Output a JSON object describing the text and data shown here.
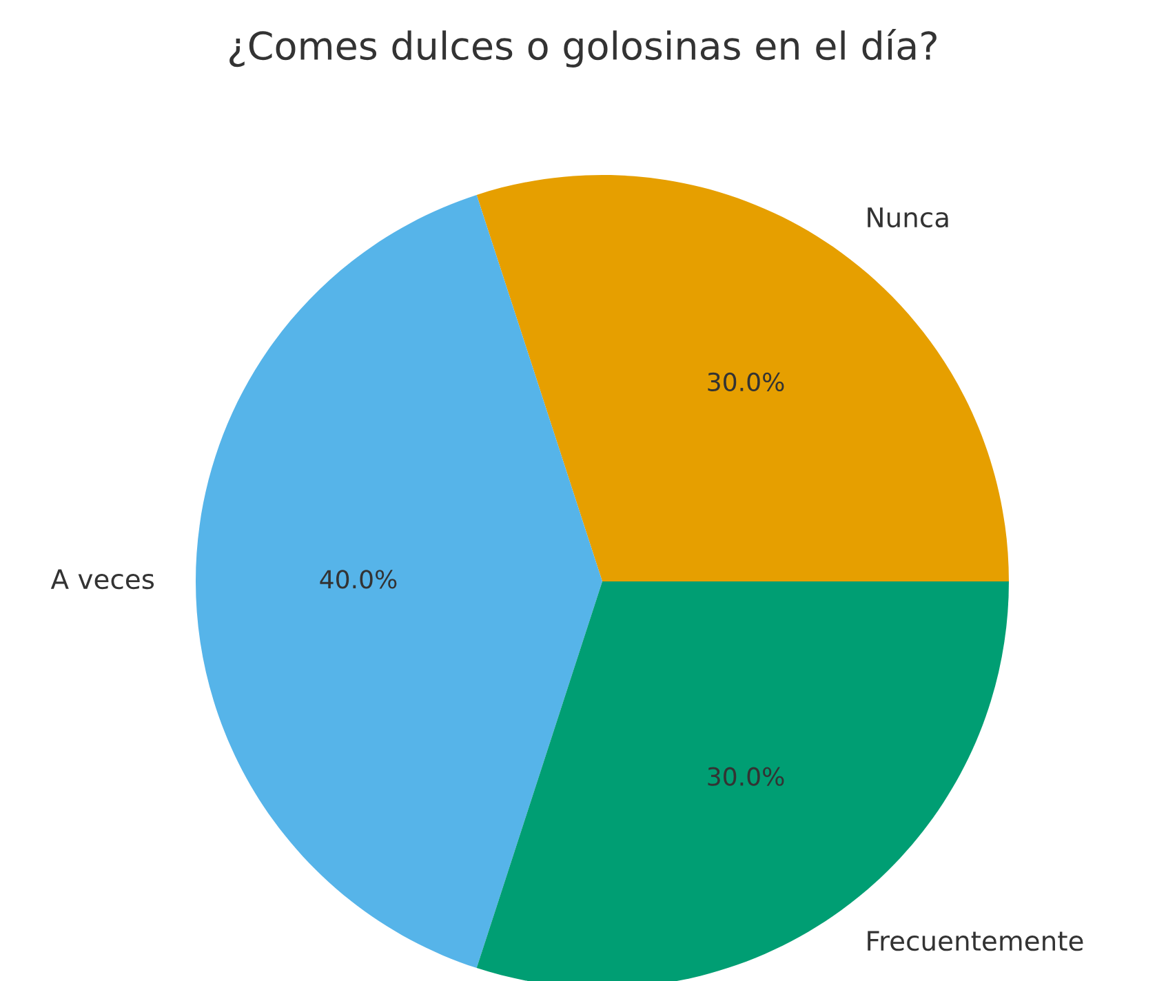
{
  "chart_data": {
    "type": "pie",
    "title": "¿Comes dulces o golosinas en el día?",
    "categories": [
      "Nunca",
      "A veces",
      "Frecuentemente"
    ],
    "values": [
      30,
      40,
      30
    ],
    "colors": [
      "#e69f00",
      "#56b4e9",
      "#009e73"
    ],
    "value_labels": [
      "30.0%",
      "40.0%",
      "30.0%"
    ],
    "legend": false
  }
}
